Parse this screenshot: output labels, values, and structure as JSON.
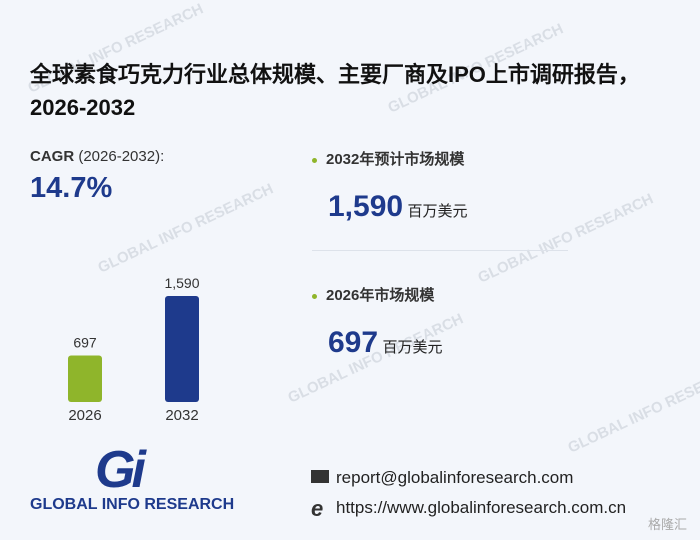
{
  "title": "全球素食巧克力行业总体规模、主要厂商及IPO上市调研报告，2026-2032",
  "cagr": {
    "label": "CAGR",
    "period": "(2026-2032):",
    "value": "14.7%"
  },
  "stats": [
    {
      "label": "2032年预计市场规模",
      "value": "1,590",
      "unit": "百万美元"
    },
    {
      "label": "2026年市场规模",
      "value": "697",
      "unit": "百万美元"
    }
  ],
  "chart_data": {
    "type": "bar",
    "categories": [
      "2026",
      "2032"
    ],
    "values": [
      697,
      1590
    ],
    "value_labels": [
      "697",
      "1,590"
    ],
    "colors": [
      "#8fb52b",
      "#1e3a8c"
    ]
  },
  "logo": {
    "mark": "Gi",
    "text": "GLOBAL INFO RESEARCH"
  },
  "contact": {
    "email": "report@globalinforesearch.com",
    "website": "https://www.globalinforesearch.com.cn"
  },
  "watermark": "GLOBAL INFO RESEARCH",
  "corner_mark": "格隆汇"
}
